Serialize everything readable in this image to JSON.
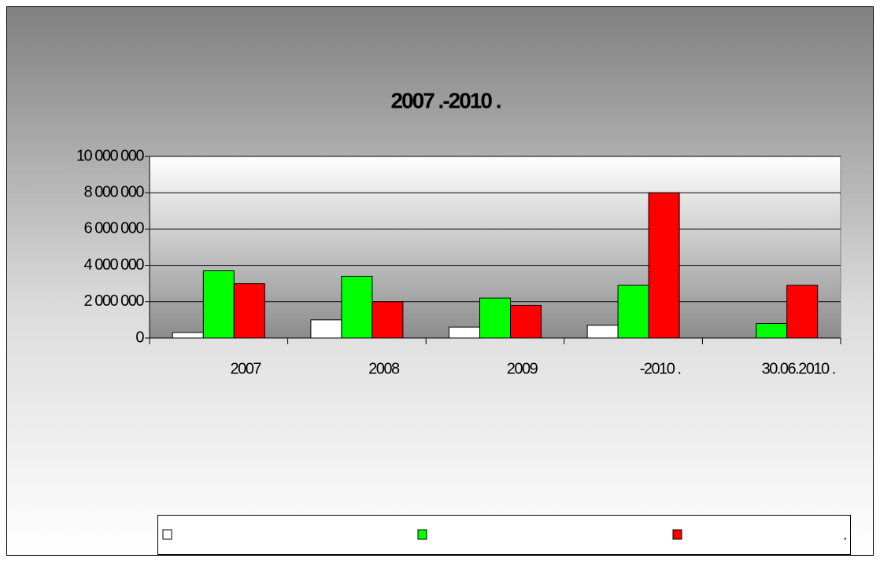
{
  "chart_data": {
    "type": "bar",
    "title": "2007 .-2010 .",
    "categories": [
      "2007",
      "2008",
      "2009",
      "-2010 .",
      "30.06.2010 ."
    ],
    "series": [
      {
        "name": ".",
        "color": "#ffffff",
        "values": [
          300000,
          1000000,
          600000,
          700000,
          null
        ]
      },
      {
        "name": ".",
        "color": "#00ff00",
        "values": [
          3700000,
          3400000,
          2200000,
          2900000,
          800000
        ]
      },
      {
        "name": ".",
        "color": "#ff0000",
        "values": [
          3000000,
          2000000,
          1800000,
          8000000,
          2900000
        ]
      }
    ],
    "ylim": [
      0,
      10000000
    ],
    "yticks": [
      0,
      {
        "value": 2000000,
        "label": "2 000 000"
      },
      {
        "value": 4000000,
        "label": "4 000 000"
      },
      {
        "value": 6000000,
        "label": "6 000 000"
      },
      {
        "value": 8000000,
        "label": "8 000 000"
      },
      {
        "value": 10000000,
        "label": "10 000 000"
      }
    ],
    "grid": true
  }
}
